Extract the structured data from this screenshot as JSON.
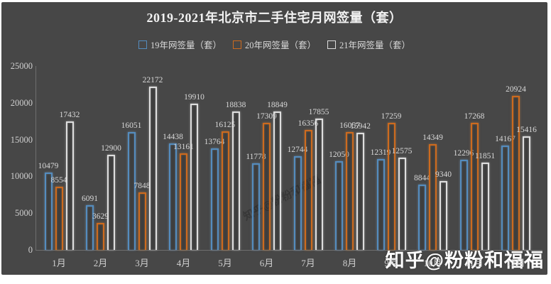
{
  "page": {
    "title": "2019-2021年北京市二手住宅月网签量（套）",
    "watermark": "知乎@粉粉和福福",
    "watermark_diagonal": "知乎@粉粉和福福"
  },
  "colors": {
    "panel_background": "#474747",
    "text": "#d9d9d9",
    "series_19": "#548cbe",
    "series_20": "#cd6a1e",
    "series_21": "#dedede"
  },
  "chart_data": {
    "type": "bar",
    "title": "2019-2021年北京市二手住宅月网签量（套）",
    "categories": [
      "1月",
      "2月",
      "3月",
      "4月",
      "5月",
      "6月",
      "7月",
      "8月",
      "9月",
      "10月",
      "11月",
      "12月"
    ],
    "series": [
      {
        "name": "19年网签量（套）",
        "color": "#548cbe",
        "values": [
          10479,
          6091,
          16051,
          14438,
          13764,
          11778,
          12744,
          12050,
          12319,
          8844,
          12296,
          14167
        ]
      },
      {
        "name": "20年网签量（套）",
        "color": "#cd6a1e",
        "values": [
          8554,
          3629,
          7848,
          13161,
          16125,
          17309,
          16356,
          16057,
          17259,
          14349,
          17268,
          20924
        ]
      },
      {
        "name": "21年网签量（套）",
        "color": "#dedede",
        "values": [
          17432,
          12900,
          22172,
          19910,
          18838,
          18849,
          17855,
          15942,
          12575,
          9340,
          11851,
          15416
        ]
      }
    ],
    "xlabel": "",
    "ylabel": "",
    "ylim": [
      0,
      25000
    ],
    "yticks": [
      0,
      5000,
      10000,
      15000,
      20000,
      25000
    ],
    "grid": false,
    "legend_position": "top",
    "bar_style": "hollow-outline"
  }
}
